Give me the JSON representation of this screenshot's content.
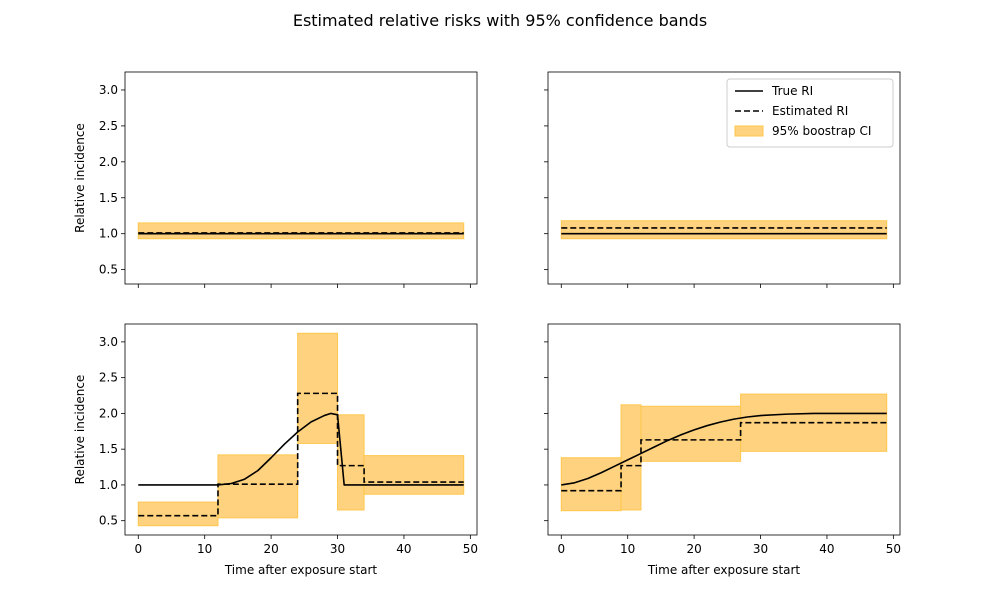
{
  "figure": {
    "title": "Estimated relative risks with 95% confidence bands"
  },
  "legend": {
    "placement": "top-right of upper-right panel",
    "entries": [
      {
        "label": "True RI",
        "style": "solid-line"
      },
      {
        "label": "Estimated RI",
        "style": "dashed-line"
      },
      {
        "label": "95% boostrap CI",
        "style": "band"
      }
    ]
  },
  "colors": {
    "true_line": "#000000",
    "estimated_line": "#000000",
    "ci_fill": "#FFD280",
    "ci_edge": "#FFC74D"
  },
  "chart_data": [
    {
      "type": "line",
      "panel": "top-left",
      "ylabel": "Relative incidence",
      "xlabel": "",
      "xlim": [
        -2,
        51
      ],
      "ylim": [
        0.3,
        3.25
      ],
      "yticks": [
        "0.5",
        "1.0",
        "1.5",
        "2.0",
        "2.5",
        "3.0"
      ],
      "xticks": [],
      "true_ri": {
        "x": [
          0,
          49
        ],
        "y": [
          1.0,
          1.0
        ]
      },
      "estimated_ri": {
        "x": [
          0,
          49
        ],
        "y": [
          1.01,
          1.01
        ]
      },
      "ci_band": [
        {
          "x0": 0,
          "x1": 49,
          "lower": 0.93,
          "upper": 1.15
        }
      ]
    },
    {
      "type": "line",
      "panel": "top-right",
      "ylabel": "",
      "xlabel": "",
      "xlim": [
        -2,
        51
      ],
      "ylim": [
        0.3,
        3.25
      ],
      "yticks": [],
      "xticks": [],
      "true_ri": {
        "x": [
          0,
          49
        ],
        "y": [
          1.0,
          1.0
        ]
      },
      "estimated_ri": {
        "x": [
          0,
          49
        ],
        "y": [
          1.08,
          1.08
        ]
      },
      "ci_band": [
        {
          "x0": 0,
          "x1": 49,
          "lower": 0.93,
          "upper": 1.18
        }
      ]
    },
    {
      "type": "line",
      "panel": "bottom-left",
      "ylabel": "Relative incidence",
      "xlabel": "Time after exposure start",
      "xlim": [
        -2,
        51
      ],
      "ylim": [
        0.3,
        3.25
      ],
      "yticks": [
        "0.5",
        "1.0",
        "1.5",
        "2.0",
        "2.5",
        "3.0"
      ],
      "xticks": [
        "0",
        "10",
        "20",
        "30",
        "40",
        "50"
      ],
      "true_ri": {
        "x": [
          0,
          12,
          14,
          16,
          18,
          20,
          22,
          24,
          26,
          28,
          29,
          30,
          31,
          49
        ],
        "y": [
          1.0,
          1.0,
          1.02,
          1.08,
          1.2,
          1.38,
          1.57,
          1.74,
          1.88,
          1.97,
          2.0,
          1.98,
          1.0,
          1.0
        ]
      },
      "estimated_ri": {
        "steps": [
          {
            "x0": 0,
            "x1": 12,
            "y": 0.57
          },
          {
            "x0": 12,
            "x1": 24,
            "y": 1.01
          },
          {
            "x0": 24,
            "x1": 30,
            "y": 2.28
          },
          {
            "x0": 30,
            "x1": 34,
            "y": 1.27
          },
          {
            "x0": 34,
            "x1": 49,
            "y": 1.04
          }
        ]
      },
      "ci_band": [
        {
          "x0": 0,
          "x1": 12,
          "lower": 0.43,
          "upper": 0.76
        },
        {
          "x0": 12,
          "x1": 24,
          "lower": 0.54,
          "upper": 1.42
        },
        {
          "x0": 24,
          "x1": 30,
          "lower": 1.58,
          "upper": 3.12
        },
        {
          "x0": 30,
          "x1": 34,
          "lower": 0.65,
          "upper": 1.98
        },
        {
          "x0": 34,
          "x1": 49,
          "lower": 0.87,
          "upper": 1.41
        }
      ]
    },
    {
      "type": "line",
      "panel": "bottom-right",
      "ylabel": "",
      "xlabel": "Time after exposure start",
      "xlim": [
        -2,
        51
      ],
      "ylim": [
        0.3,
        3.25
      ],
      "yticks": [],
      "xticks": [
        "0",
        "10",
        "20",
        "30",
        "40",
        "50"
      ],
      "true_ri": {
        "x": [
          0,
          2,
          4,
          6,
          8,
          10,
          12,
          14,
          16,
          18,
          20,
          22,
          24,
          26,
          28,
          30,
          34,
          38,
          42,
          49
        ],
        "y": [
          1.0,
          1.03,
          1.09,
          1.17,
          1.26,
          1.35,
          1.44,
          1.53,
          1.62,
          1.7,
          1.77,
          1.83,
          1.88,
          1.92,
          1.95,
          1.97,
          1.99,
          2.0,
          2.0,
          2.0
        ]
      },
      "estimated_ri": {
        "steps": [
          {
            "x0": 0,
            "x1": 9,
            "y": 0.92
          },
          {
            "x0": 9,
            "x1": 12,
            "y": 1.27
          },
          {
            "x0": 12,
            "x1": 27,
            "y": 1.63
          },
          {
            "x0": 27,
            "x1": 49,
            "y": 1.87
          }
        ]
      },
      "ci_band": [
        {
          "x0": 0,
          "x1": 9,
          "lower": 0.64,
          "upper": 1.38
        },
        {
          "x0": 9,
          "x1": 12,
          "lower": 0.65,
          "upper": 2.12
        },
        {
          "x0": 12,
          "x1": 27,
          "lower": 1.33,
          "upper": 2.1
        },
        {
          "x0": 27,
          "x1": 49,
          "lower": 1.47,
          "upper": 2.27
        }
      ]
    }
  ]
}
